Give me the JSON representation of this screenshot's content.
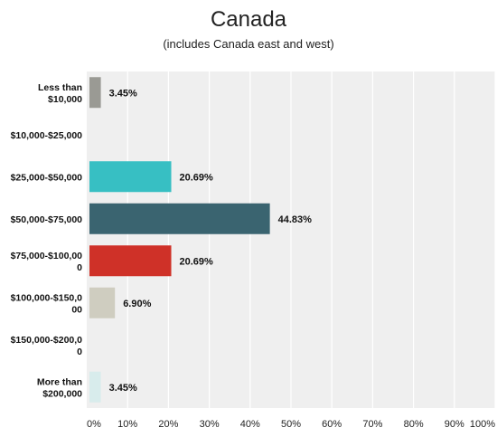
{
  "chart_data": {
    "type": "bar",
    "orientation": "horizontal",
    "title": "Canada",
    "subtitle": "(includes Canada east and west)",
    "categories": [
      [
        "Less than",
        "$10,000"
      ],
      [
        "$10,000-$25,000"
      ],
      [
        "$25,000-$50,000"
      ],
      [
        "$50,000-$75,000"
      ],
      [
        "$75,000-$100,00",
        "0"
      ],
      [
        "$100,000-$150,0",
        "00"
      ],
      [
        "$150,000-$200,0",
        "0"
      ],
      [
        "More than",
        "$200,000"
      ]
    ],
    "values": [
      3.45,
      0,
      20.69,
      44.83,
      20.69,
      6.9,
      0,
      3.45
    ],
    "value_labels": [
      "3.45%",
      "",
      "20.69%",
      "44.83%",
      "20.69%",
      "6.90%",
      "",
      "3.45%"
    ],
    "bar_colors": [
      "#9a9a94",
      "#9a9a94",
      "#37bfc3",
      "#3a6470",
      "#cf3128",
      "#cfcdc0",
      "#cfcdc0",
      "#d8ecec"
    ],
    "xlim": [
      0,
      100
    ],
    "xticks": [
      "0%",
      "10%",
      "20%",
      "30%",
      "40%",
      "50%",
      "60%",
      "70%",
      "80%",
      "90%",
      "100%"
    ],
    "plot_background": "#efefef",
    "gridline_color": "#ffffff",
    "grid": true,
    "legend": "none"
  }
}
